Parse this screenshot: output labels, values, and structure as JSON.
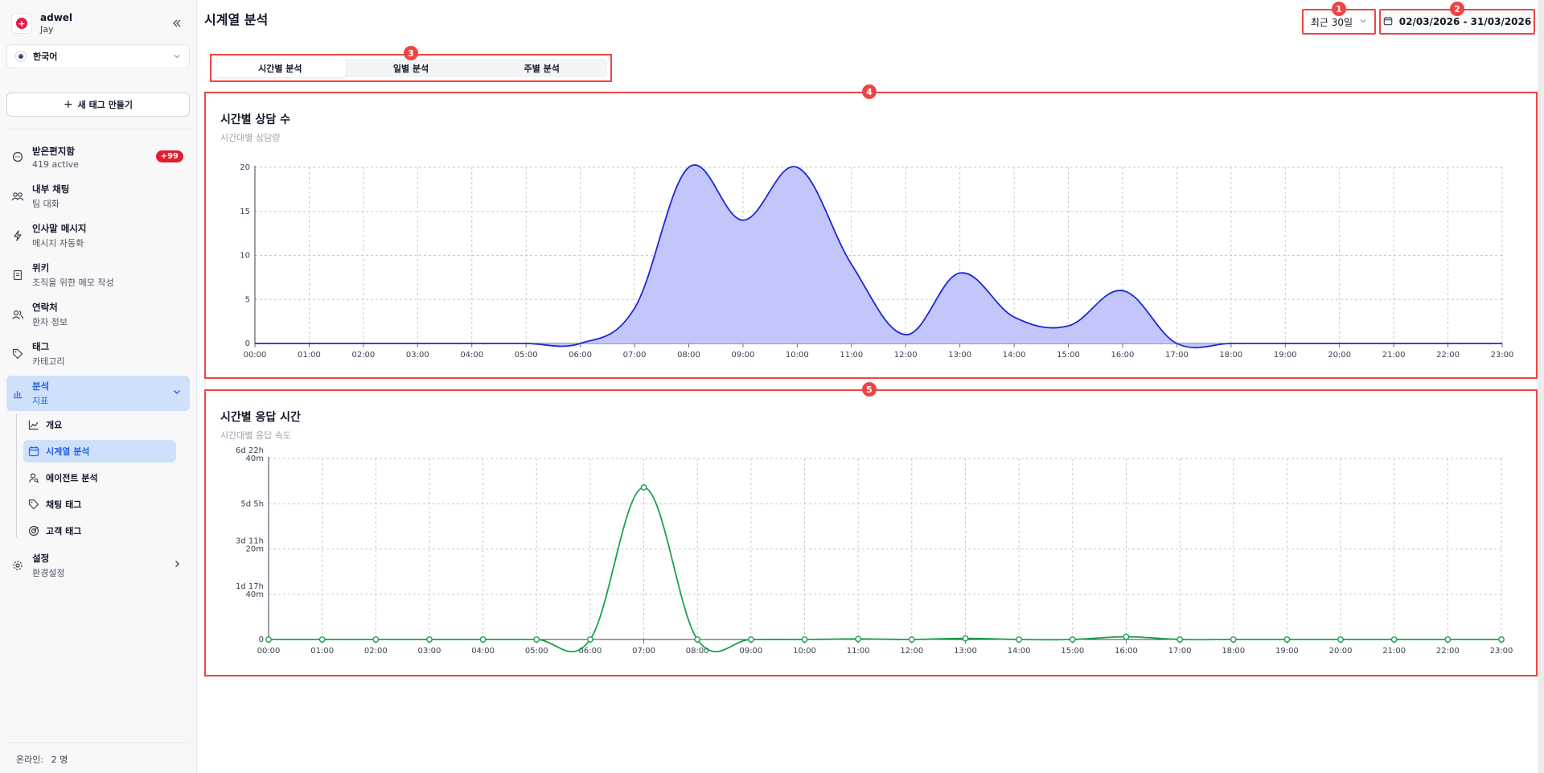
{
  "sidebar": {
    "org": "adwel",
    "user": "Jay",
    "language": "한국어",
    "new_tag": "새 태그 만들기",
    "items": [
      {
        "title": "받은편지함",
        "subtitle": "419 active",
        "badge": "+99"
      },
      {
        "title": "내부 채팅",
        "subtitle": "팀 대화"
      },
      {
        "title": "인사말 메시지",
        "subtitle": "메시지 자동화"
      },
      {
        "title": "위키",
        "subtitle": "조직을 위한 메모 작성"
      },
      {
        "title": "연락처",
        "subtitle": "환자 정보"
      },
      {
        "title": "태그",
        "subtitle": "카테고리"
      },
      {
        "title": "분석",
        "subtitle": "지표"
      },
      {
        "title": "설정",
        "subtitle": "환경설정"
      }
    ],
    "subitems": [
      "개요",
      "시계열 분석",
      "에이전트 분석",
      "채팅 태그",
      "고객 태그"
    ],
    "footer_label": "온라인:",
    "footer_value": "2 명"
  },
  "header": {
    "title": "시계열 분석",
    "range": "최근 30일",
    "date_range": "02/03/2026 - 31/03/2026"
  },
  "markers": [
    "1",
    "2",
    "3",
    "4",
    "5"
  ],
  "tabs": [
    {
      "label": "시간별 분석",
      "active": true
    },
    {
      "label": "일별 분석",
      "active": false
    },
    {
      "label": "주별 분석",
      "active": false
    }
  ],
  "colors": {
    "consult": "#1d27d9",
    "consult_fill": "#c3c6fa",
    "response": "#16a34a",
    "highlight": "#ef4444"
  },
  "chart_data": [
    {
      "type": "area",
      "title": "시간별 상담 수",
      "subtitle": "시간대별 상담량",
      "x": [
        "00:00",
        "01:00",
        "02:00",
        "03:00",
        "04:00",
        "05:00",
        "06:00",
        "07:00",
        "08:00",
        "09:00",
        "10:00",
        "11:00",
        "12:00",
        "13:00",
        "14:00",
        "15:00",
        "16:00",
        "17:00",
        "18:00",
        "19:00",
        "20:00",
        "21:00",
        "22:00",
        "23:00"
      ],
      "values": [
        0,
        0,
        0,
        0,
        0,
        0,
        0,
        4,
        20,
        14,
        20,
        9,
        1,
        8,
        3,
        2,
        6,
        0,
        0,
        0,
        0,
        0,
        0,
        0
      ],
      "ylim": [
        0,
        20
      ],
      "yticks": [
        "0",
        "5",
        "10",
        "15",
        "20"
      ],
      "grid": true
    },
    {
      "type": "line",
      "title": "시간별 응답 시간",
      "subtitle": "시간대별 응답 속도",
      "x": [
        "00:00",
        "01:00",
        "02:00",
        "03:00",
        "04:00",
        "05:00",
        "06:00",
        "07:00",
        "08:00",
        "09:00",
        "10:00",
        "11:00",
        "12:00",
        "13:00",
        "14:00",
        "15:00",
        "16:00",
        "17:00",
        "18:00",
        "19:00",
        "20:00",
        "21:00",
        "22:00",
        "23:00"
      ],
      "values": [
        0,
        0,
        0,
        0,
        0,
        0,
        0,
        8400,
        0,
        0,
        0,
        30,
        0,
        60,
        0,
        0,
        150,
        0,
        0,
        0,
        0,
        0,
        0,
        0
      ],
      "ylim": [
        0,
        10000
      ],
      "yticks": [
        [
          "0"
        ],
        [
          "1d 17h",
          "40m"
        ],
        [
          "3d 11h",
          "20m"
        ],
        [
          "5d 5h"
        ],
        [
          "6d 22h",
          "40m"
        ]
      ],
      "grid": true
    }
  ]
}
